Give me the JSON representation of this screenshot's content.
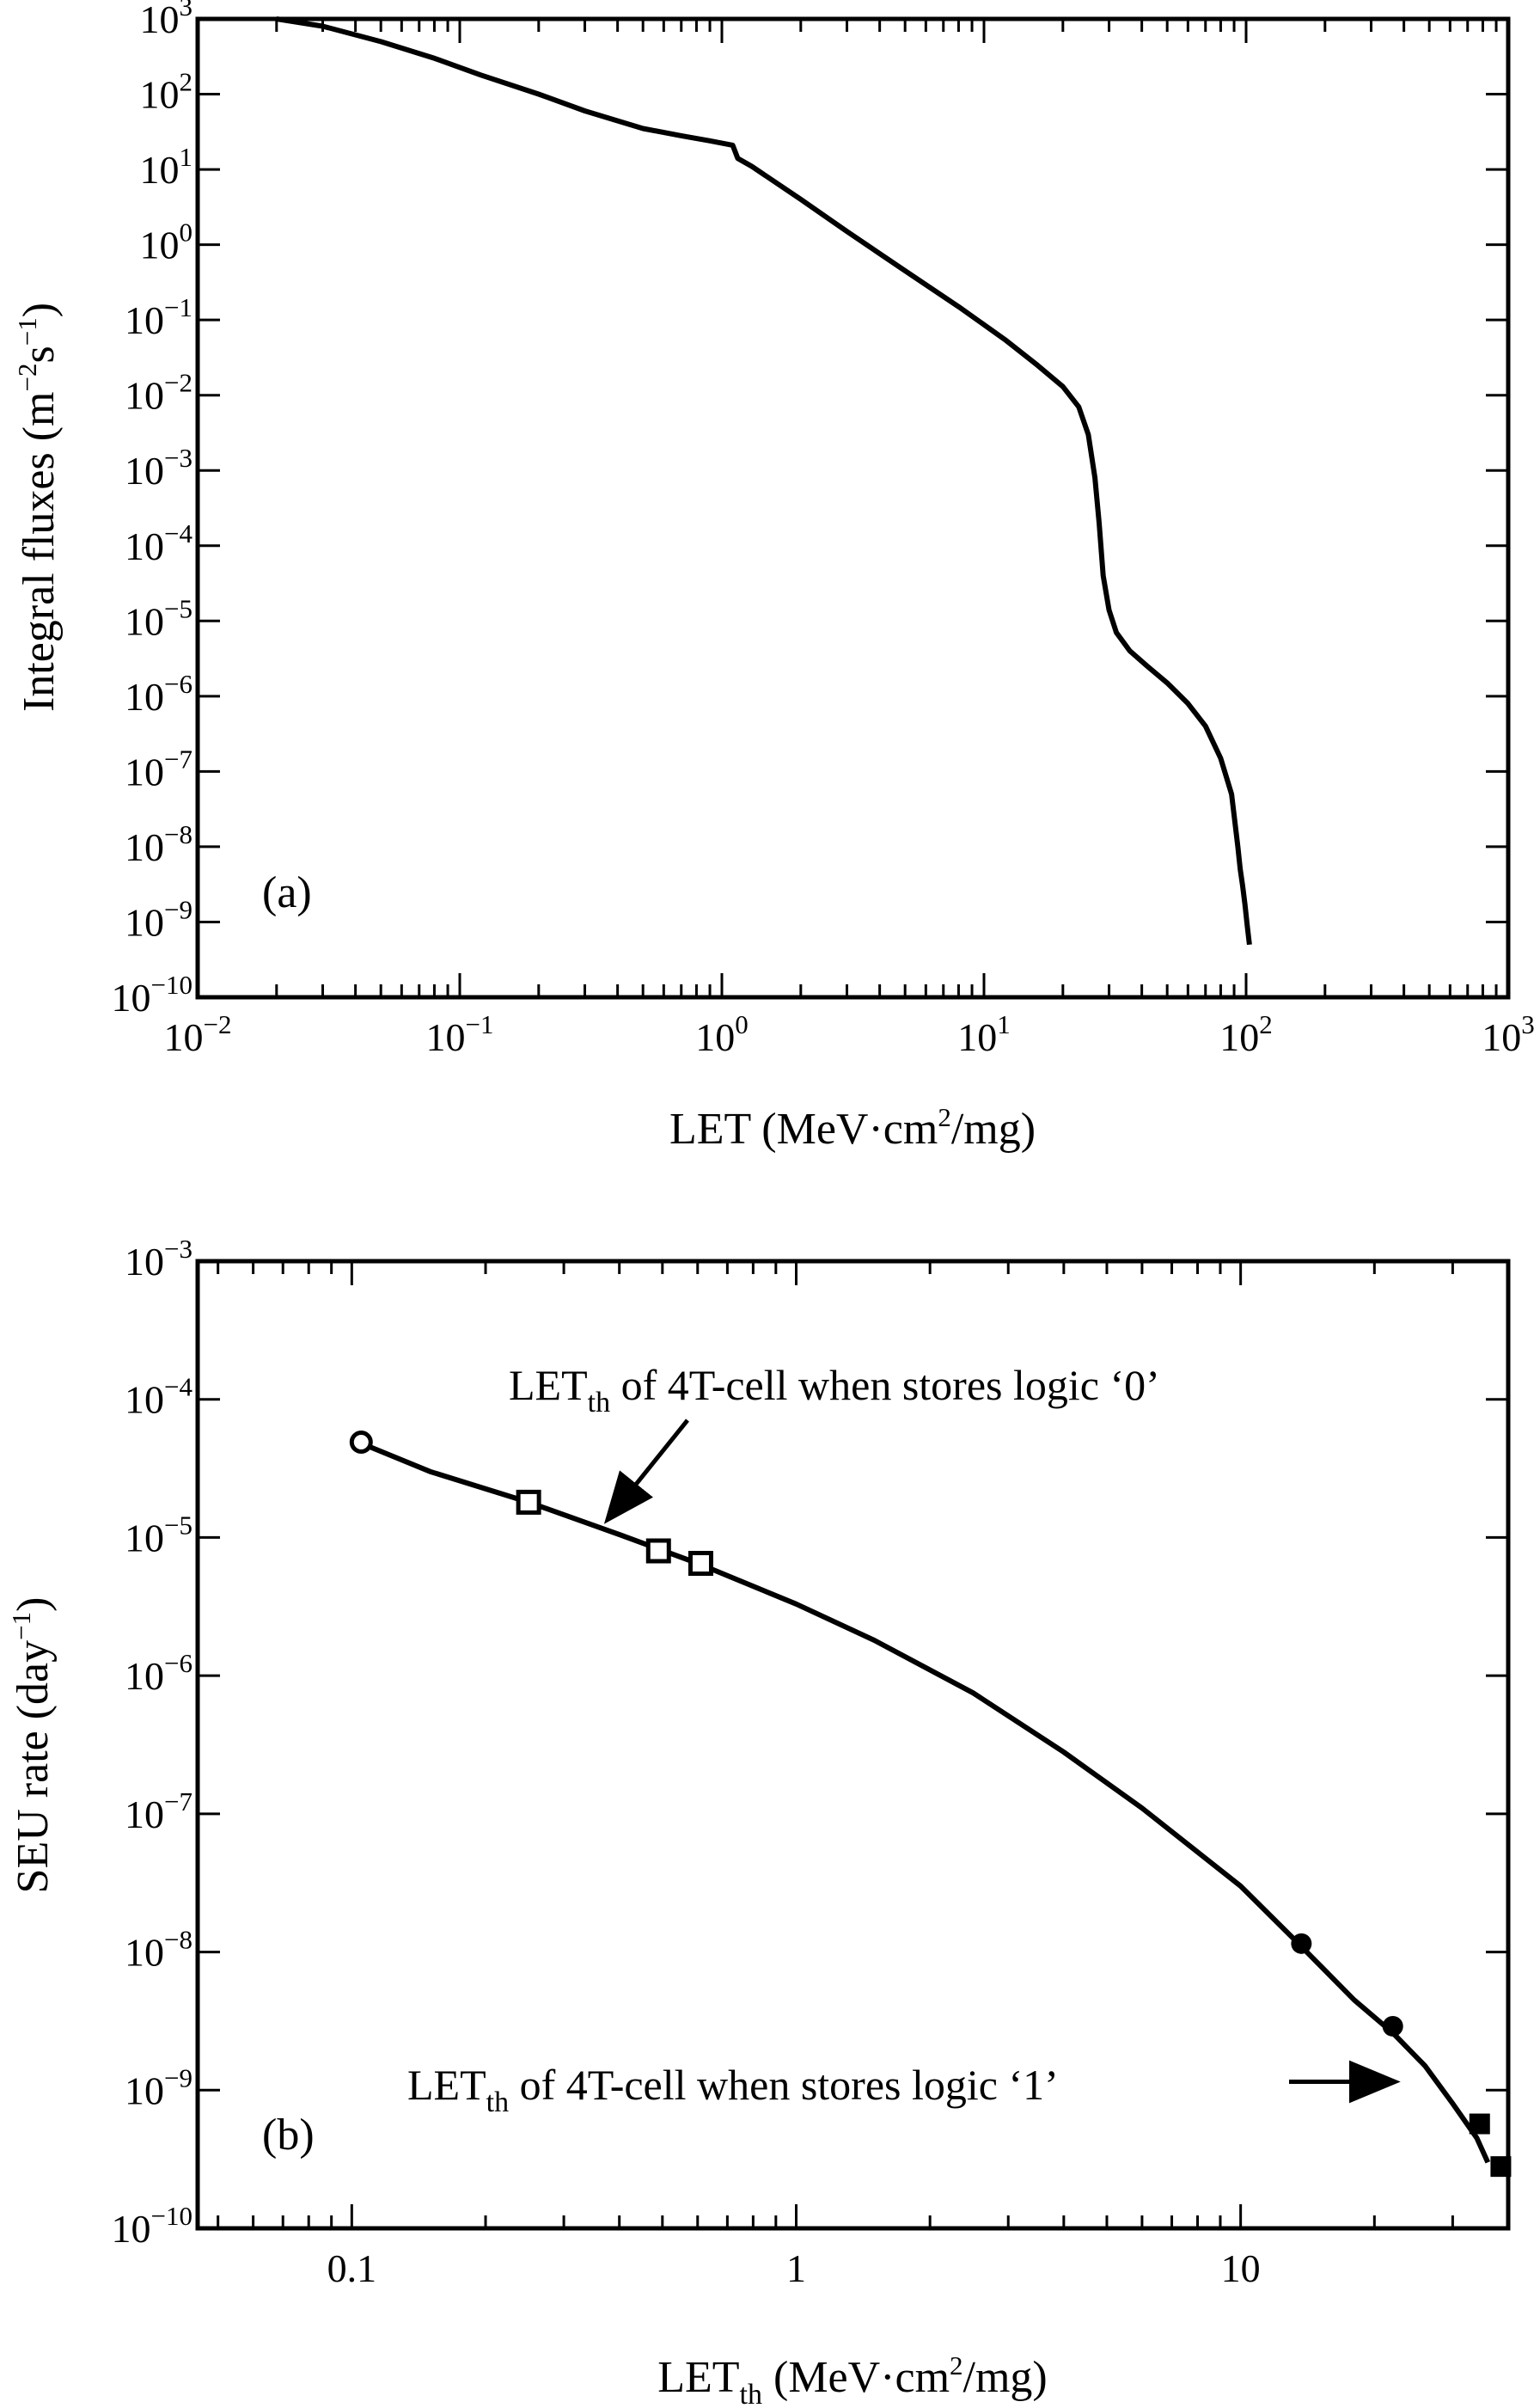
{
  "chart_data": [
    {
      "type": "line",
      "panel_label": "(a)",
      "xlabel": {
        "main": "LET (MeV·cm",
        "sup": "2",
        "tail": "/mg)"
      },
      "ylabel": {
        "main": "Integral fluxes (m",
        "sup1": "−2",
        "mid": "s",
        "sup2": "−1",
        "tail": ")"
      },
      "x_scale": "log",
      "y_scale": "log",
      "xlim": [
        0.01,
        1000
      ],
      "ylim": [
        1e-10,
        1000
      ],
      "x_ticks": [
        {
          "value": 0.01,
          "base": "10",
          "exp": "−2"
        },
        {
          "value": 0.1,
          "base": "10",
          "exp": "−1"
        },
        {
          "value": 1,
          "base": "10",
          "exp": "0"
        },
        {
          "value": 10,
          "base": "10",
          "exp": "1"
        },
        {
          "value": 100,
          "base": "10",
          "exp": "2"
        },
        {
          "value": 1000,
          "base": "10",
          "exp": "3"
        }
      ],
      "y_ticks": [
        {
          "value": 1e-10,
          "base": "10",
          "exp": "−10"
        },
        {
          "value": 1e-09,
          "base": "10",
          "exp": "−9"
        },
        {
          "value": 1e-08,
          "base": "10",
          "exp": "−8"
        },
        {
          "value": 1e-07,
          "base": "10",
          "exp": "−7"
        },
        {
          "value": 1e-06,
          "base": "10",
          "exp": "−6"
        },
        {
          "value": 1e-05,
          "base": "10",
          "exp": "−5"
        },
        {
          "value": 0.0001,
          "base": "10",
          "exp": "−4"
        },
        {
          "value": 0.001,
          "base": "10",
          "exp": "−3"
        },
        {
          "value": 0.01,
          "base": "10",
          "exp": "−2"
        },
        {
          "value": 0.1,
          "base": "10",
          "exp": "−1"
        },
        {
          "value": 1,
          "base": "10",
          "exp": "0"
        },
        {
          "value": 10,
          "base": "10",
          "exp": "1"
        },
        {
          "value": 100,
          "base": "10",
          "exp": "2"
        },
        {
          "value": 1000,
          "base": "10",
          "exp": "3"
        }
      ],
      "grid": false,
      "series": [
        {
          "x": [
            0.02,
            0.03,
            0.05,
            0.08,
            0.12,
            0.2,
            0.3,
            0.5,
            0.7,
            0.9,
            1.1,
            1.15,
            1.3,
            2,
            3,
            5,
            8,
            12,
            16,
            20,
            23,
            25,
            26.5,
            27.5,
            28.5,
            30,
            32,
            36,
            42,
            50,
            60,
            70,
            80,
            88,
            93,
            95,
            97,
            99,
            101,
            103
          ],
          "y": [
            1000,
            800,
            500,
            300,
            180,
            100,
            60,
            35,
            28,
            24,
            21,
            14,
            11,
            4,
            1.5,
            0.45,
            0.15,
            0.055,
            0.025,
            0.013,
            0.007,
            0.003,
            0.0008,
            0.0002,
            4e-05,
            1.4e-05,
            7e-06,
            4e-06,
            2.5e-06,
            1.5e-06,
            8e-07,
            4e-07,
            1.5e-07,
            5e-08,
            1e-08,
            5e-09,
            3e-09,
            1.7e-09,
            9e-10,
            5e-10
          ]
        }
      ]
    },
    {
      "type": "line",
      "panel_label": "(b)",
      "xlabel": {
        "main": "LET",
        "sub": "th",
        "mid": " (MeV·cm",
        "sup": "2",
        "tail": "/mg)"
      },
      "ylabel": {
        "main": "SEU rate (day",
        "sup": "−1",
        "tail": ")"
      },
      "x_scale": "log",
      "y_scale": "log",
      "xlim": [
        0.045,
        40
      ],
      "ylim": [
        1e-10,
        0.001
      ],
      "x_ticks": [
        {
          "value": 0.1,
          "label": "0.1"
        },
        {
          "value": 1,
          "label": "1"
        },
        {
          "value": 10,
          "label": "10"
        }
      ],
      "y_ticks": [
        {
          "value": 1e-10,
          "base": "10",
          "exp": "−10"
        },
        {
          "value": 1e-09,
          "base": "10",
          "exp": "−9"
        },
        {
          "value": 1e-08,
          "base": "10",
          "exp": "−8"
        },
        {
          "value": 1e-07,
          "base": "10",
          "exp": "−7"
        },
        {
          "value": 1e-06,
          "base": "10",
          "exp": "−6"
        },
        {
          "value": 1e-05,
          "base": "10",
          "exp": "−5"
        },
        {
          "value": 0.0001,
          "base": "10",
          "exp": "−4"
        },
        {
          "value": 0.001,
          "base": "10",
          "exp": "−3"
        }
      ],
      "grid": false,
      "curve": {
        "x": [
          0.105,
          0.15,
          0.25,
          0.4,
          0.6,
          1,
          1.5,
          2.5,
          4,
          6,
          10,
          13.5,
          18,
          22,
          26,
          30,
          34,
          36
        ],
        "y": [
          4.8e-05,
          3e-05,
          1.8e-05,
          1.05e-05,
          6.5e-06,
          3.3e-06,
          1.8e-06,
          7.5e-07,
          2.8e-07,
          1.1e-07,
          3e-08,
          1.15e-08,
          4.5e-09,
          2.6e-09,
          1.5e-09,
          8e-10,
          4.5e-10,
          3e-10
        ]
      },
      "markers": [
        {
          "shape": "open-circle",
          "x": 0.105,
          "y": 4.9e-05
        },
        {
          "shape": "open-square",
          "x": 0.25,
          "y": 1.8e-05
        },
        {
          "shape": "open-square",
          "x": 0.49,
          "y": 8e-06
        },
        {
          "shape": "open-square",
          "x": 0.61,
          "y": 6.5e-06
        },
        {
          "shape": "filled-circle",
          "x": 13.7,
          "y": 1.15e-08
        },
        {
          "shape": "filled-circle",
          "x": 22,
          "y": 2.9e-09
        },
        {
          "shape": "filled-square",
          "x": 34.5,
          "y": 5.7e-10
        },
        {
          "shape": "filled-square",
          "x": 38.5,
          "y": 2.8e-10
        }
      ],
      "annotations": [
        {
          "text_main": "LET",
          "text_sub": "th",
          "text_rest": " of 4T-cell when stores logic ‘0’",
          "arrow_to": {
            "x": 0.38,
            "y": 1.4e-05
          }
        },
        {
          "text_main": "LET",
          "text_sub": "th",
          "text_rest": " of 4T-cell when stores logic ‘1’",
          "arrow_to": {
            "x": 22.5,
            "y": 1.15e-09
          }
        }
      ]
    }
  ]
}
